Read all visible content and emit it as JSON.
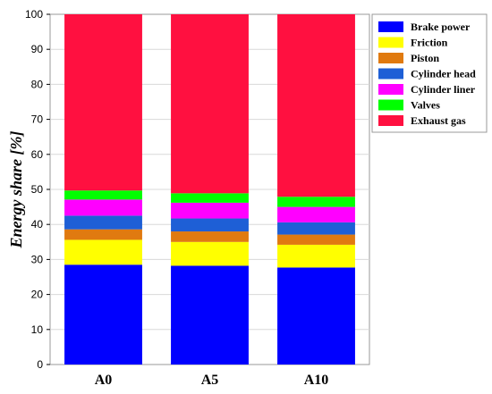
{
  "chart_data": {
    "type": "bar",
    "stacked": true,
    "categories": [
      "A0",
      "A5",
      "A10"
    ],
    "series": [
      {
        "name": "Brake power",
        "color": "#0000ff",
        "values": [
          28.5,
          28.2,
          27.7
        ]
      },
      {
        "name": "Friction",
        "color": "#ffff00",
        "values": [
          7.1,
          6.8,
          6.5
        ]
      },
      {
        "name": "Piston",
        "color": "#e07a10",
        "values": [
          3.0,
          3.0,
          2.9
        ]
      },
      {
        "name": "Cylinder head",
        "color": "#1e5fd6",
        "values": [
          3.9,
          3.7,
          3.5
        ]
      },
      {
        "name": "Cylinder liner",
        "color": "#ff00ff",
        "values": [
          4.6,
          4.5,
          4.4
        ]
      },
      {
        "name": "Valves",
        "color": "#00ff00",
        "values": [
          2.6,
          2.7,
          2.9
        ]
      },
      {
        "name": "Exhaust gas",
        "color": "#ff1040",
        "values": [
          50.3,
          51.1,
          52.1
        ]
      }
    ],
    "ylabel": "Energy share [%]",
    "xlabel": "",
    "ylim": [
      0,
      100
    ],
    "yticks": [
      0,
      10,
      20,
      30,
      40,
      50,
      60,
      70,
      80,
      90,
      100
    ],
    "grid": true,
    "legend_position": "top-right"
  }
}
